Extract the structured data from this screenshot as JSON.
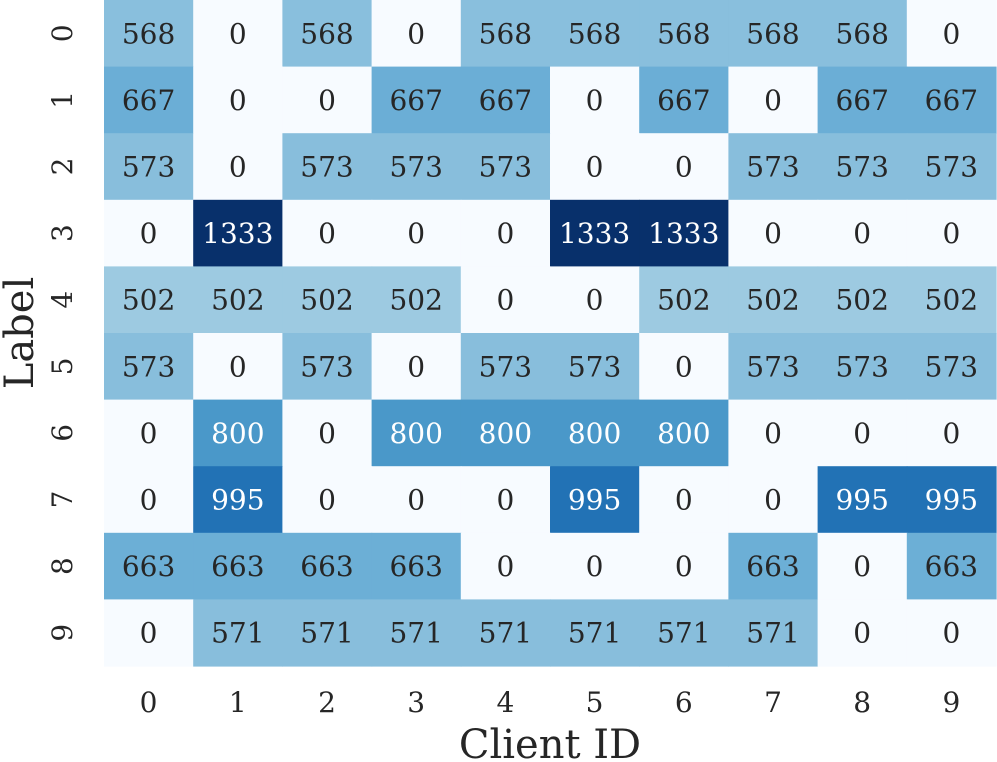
{
  "chart_data": {
    "type": "heatmap",
    "title": "",
    "xlabel": "Client ID",
    "ylabel": "Label",
    "x_categories": [
      "0",
      "1",
      "2",
      "3",
      "4",
      "5",
      "6",
      "7",
      "8",
      "9"
    ],
    "y_categories": [
      "0",
      "1",
      "2",
      "3",
      "4",
      "5",
      "6",
      "7",
      "8",
      "9"
    ],
    "values": [
      [
        568,
        0,
        568,
        0,
        568,
        568,
        568,
        568,
        568,
        0
      ],
      [
        667,
        0,
        0,
        667,
        667,
        0,
        667,
        0,
        667,
        667
      ],
      [
        573,
        0,
        573,
        573,
        573,
        0,
        0,
        573,
        573,
        573
      ],
      [
        0,
        1333,
        0,
        0,
        0,
        1333,
        1333,
        0,
        0,
        0
      ],
      [
        502,
        502,
        502,
        502,
        0,
        0,
        502,
        502,
        502,
        502
      ],
      [
        573,
        0,
        573,
        0,
        573,
        573,
        0,
        573,
        573,
        573
      ],
      [
        0,
        800,
        0,
        800,
        800,
        800,
        800,
        0,
        0,
        0
      ],
      [
        0,
        995,
        0,
        0,
        0,
        995,
        0,
        0,
        995,
        995
      ],
      [
        663,
        663,
        663,
        663,
        0,
        0,
        0,
        663,
        0,
        663
      ],
      [
        0,
        571,
        571,
        571,
        571,
        571,
        571,
        571,
        0,
        0
      ]
    ],
    "colormap": "Blues",
    "vmin": 0,
    "vmax": 1333,
    "colorbar": false,
    "annotations": true
  }
}
